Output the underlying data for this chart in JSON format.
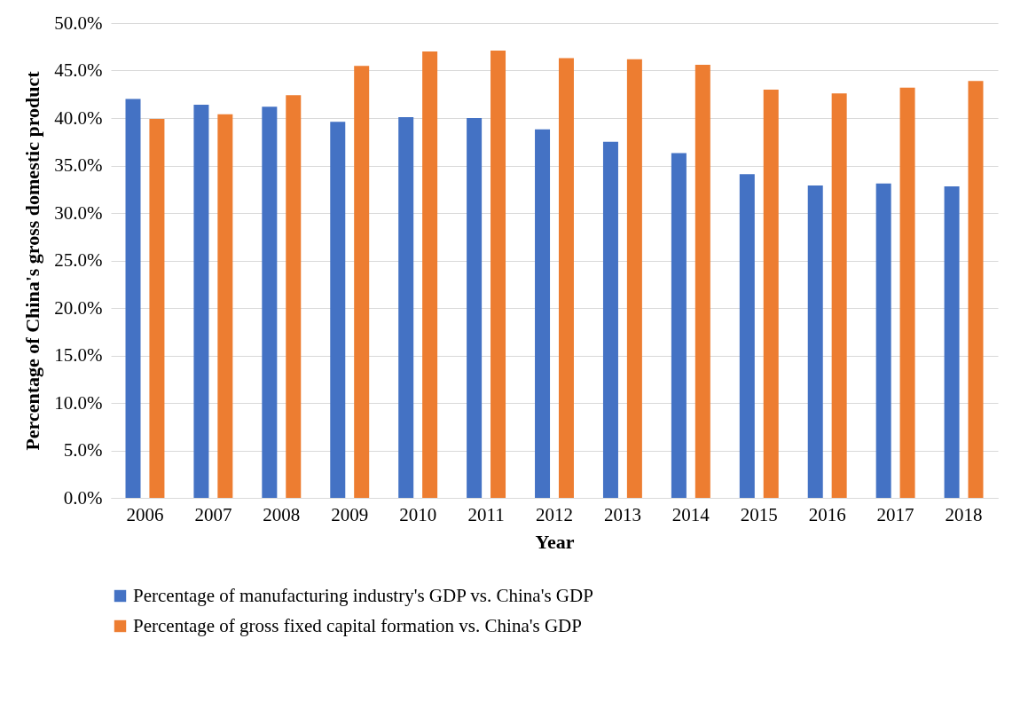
{
  "chart_data": {
    "type": "bar",
    "xlabel": "Year",
    "ylabel": "Percentage of China's gross domestic product",
    "categories": [
      "2006",
      "2007",
      "2008",
      "2009",
      "2010",
      "2011",
      "2012",
      "2013",
      "2014",
      "2015",
      "2016",
      "2017",
      "2018"
    ],
    "series": [
      {
        "name": "Percentage of manufacturing industry's GDP vs. China's GDP",
        "color": "#4472c4",
        "values": [
          42.0,
          41.4,
          41.2,
          39.6,
          40.1,
          40.0,
          38.8,
          37.5,
          36.3,
          34.1,
          32.9,
          33.1,
          32.8
        ]
      },
      {
        "name": "Percentage of gross fixed capital formation vs. China's GDP",
        "color": "#ed7d31",
        "values": [
          39.9,
          40.4,
          42.4,
          45.5,
          47.0,
          47.1,
          46.3,
          46.2,
          45.6,
          43.0,
          42.6,
          43.2,
          43.9
        ]
      }
    ],
    "ylim": [
      0,
      50
    ],
    "yticks": [
      {
        "value": 0,
        "label": "0.0%"
      },
      {
        "value": 5,
        "label": "5.0%"
      },
      {
        "value": 10,
        "label": "10.0%"
      },
      {
        "value": 15,
        "label": "15.0%"
      },
      {
        "value": 20,
        "label": "20.0%"
      },
      {
        "value": 25,
        "label": "25.0%"
      },
      {
        "value": 30,
        "label": "30.0%"
      },
      {
        "value": 35,
        "label": "35.0%"
      },
      {
        "value": 40,
        "label": "40.0%"
      },
      {
        "value": 45,
        "label": "45.0%"
      },
      {
        "value": 50,
        "label": "50.0%"
      }
    ],
    "grid": "y",
    "legend": "bottom"
  }
}
